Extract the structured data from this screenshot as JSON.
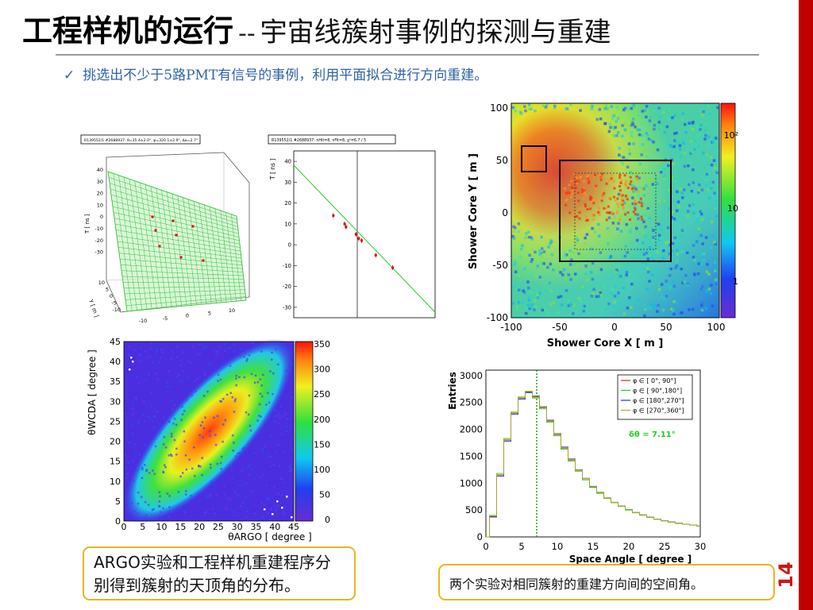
{
  "slide": {
    "title_bold": "工程样机的运行",
    "title_sep": "--",
    "title_rest": "宇宙线簇射事例的探测与重建",
    "page_number": "14",
    "bullet_check": "✓",
    "bullet": "挑选出不少于5路PMT有信号的事例，利用平面拟合进行方向重建。",
    "caption_left": "ARGO实验和工程样机重建程序分别得到簇射的天顶角的分布。",
    "caption_right": "两个实验对相同簇射的重建方向间的空间角。",
    "colors": {
      "accent_red": "#c00000",
      "bullet_blue": "#2d63a8",
      "caption_border": "#e6b71e"
    }
  },
  "chart_data": [
    {
      "type": "scatter",
      "name": "plane-fit-3d",
      "title": "R139552/1 #2688937: θ=35.4±2.0°, φ=320.1±2.9°, Δα=2.7°",
      "ylabel": "T [ ns ]",
      "xlabel": "Y [ m ]",
      "zlabel": "",
      "z_ticks": [
        "40",
        "30",
        "20",
        "10",
        "0",
        "-10",
        "-20",
        "-30"
      ],
      "y_ticks": [
        "10",
        "5",
        "0",
        "-5",
        "-10"
      ],
      "x_ticks": [
        "-10",
        "-5",
        "0",
        "5",
        "10"
      ]
    },
    {
      "type": "scatter",
      "name": "time-residual-fit",
      "title": "R139552/1 #2688937: nHit=8, nFit=8, χ²=6.7 / 5",
      "ylabel": "T [ ns ]",
      "ylim": [
        -35,
        45
      ],
      "y_ticks": [
        "40",
        "30",
        "20",
        "10",
        "0",
        "-10",
        "-20",
        "-30"
      ],
      "points": [
        {
          "x": 0.28,
          "y": 14
        },
        {
          "x": 0.36,
          "y": 10
        },
        {
          "x": 0.37,
          "y": 8.5
        },
        {
          "x": 0.44,
          "y": 5
        },
        {
          "x": 0.46,
          "y": 3
        },
        {
          "x": 0.48,
          "y": 2
        },
        {
          "x": 0.58,
          "y": -5
        },
        {
          "x": 0.7,
          "y": -11
        }
      ]
    },
    {
      "type": "heatmap",
      "name": "shower-core-map",
      "xlabel": "Shower Core X [ m ]",
      "ylabel": "Shower Core Y [ m ]",
      "xlim": [
        -100,
        100
      ],
      "ylim": [
        -100,
        100
      ],
      "x_ticks": [
        "-100",
        "-50",
        "0",
        "50",
        "100"
      ],
      "y_ticks": [
        "100",
        "50",
        "0",
        "-50",
        "-100"
      ],
      "color_scale": "log",
      "colorbar_ticks": [
        "10²",
        "10",
        "1"
      ]
    },
    {
      "type": "heatmap",
      "name": "zenith-correlation",
      "xlabel": "θARGO [ degree ]",
      "ylabel": "θWCDA [ degree ]",
      "xlim": [
        0,
        45
      ],
      "ylim": [
        0,
        45
      ],
      "x_ticks": [
        "0",
        "5",
        "10",
        "15",
        "20",
        "25",
        "30",
        "35",
        "40",
        "45"
      ],
      "y_ticks": [
        "45",
        "40",
        "35",
        "30",
        "25",
        "20",
        "15",
        "10",
        "5",
        "0"
      ],
      "colorbar_ticks": [
        "350",
        "300",
        "250",
        "200",
        "150",
        "100",
        "50",
        "0"
      ]
    },
    {
      "type": "line",
      "name": "space-angle",
      "xlabel": "Space Angle [ degree ]",
      "ylabel": "Entries",
      "xlim": [
        0,
        30
      ],
      "ylim": [
        0,
        3100
      ],
      "x_ticks": [
        "0",
        "5",
        "10",
        "15",
        "20",
        "25",
        "30"
      ],
      "y_ticks": [
        "3000",
        "2500",
        "2000",
        "1500",
        "1000",
        "500",
        "0"
      ],
      "annotation": "δθ = 7.11°",
      "marker_x": 7.11,
      "x": [
        0,
        1,
        2,
        3,
        4,
        5,
        6,
        7,
        8,
        9,
        10,
        11,
        12,
        13,
        14,
        15,
        16,
        17,
        18,
        19,
        20,
        21,
        22,
        23,
        24,
        25,
        26,
        27,
        28,
        29,
        30
      ],
      "series": [
        {
          "name": "φ ∈ [   0°,  90°]",
          "color": "#e02020",
          "values": [
            0,
            380,
            1150,
            1800,
            2300,
            2580,
            2700,
            2600,
            2400,
            2150,
            1900,
            1650,
            1430,
            1240,
            1080,
            930,
            820,
            720,
            640,
            570,
            505,
            450,
            405,
            365,
            330,
            300,
            275,
            255,
            235,
            220,
            205
          ]
        },
        {
          "name": "φ ∈ [  90°,180°]",
          "color": "#22cc22",
          "values": [
            0,
            400,
            1180,
            1830,
            2320,
            2600,
            2690,
            2580,
            2380,
            2130,
            1880,
            1630,
            1410,
            1220,
            1060,
            920,
            810,
            715,
            635,
            565,
            500,
            448,
            402,
            362,
            328,
            298,
            272,
            252,
            233,
            218,
            203
          ]
        },
        {
          "name": "φ ∈ [180°,270°]",
          "color": "#2030d0",
          "values": [
            0,
            370,
            1130,
            1780,
            2280,
            2560,
            2680,
            2620,
            2420,
            2170,
            1920,
            1670,
            1450,
            1250,
            1090,
            940,
            830,
            725,
            645,
            575,
            510,
            455,
            410,
            368,
            333,
            303,
            278,
            257,
            237,
            222,
            207
          ]
        },
        {
          "name": "φ ∈ [270°,360°]",
          "color": "#b0b020",
          "values": [
            0,
            390,
            1160,
            1810,
            2310,
            2590,
            2710,
            2610,
            2410,
            2160,
            1910,
            1660,
            1440,
            1245,
            1085,
            935,
            825,
            722,
            642,
            572,
            507,
            452,
            407,
            366,
            331,
            301,
            276,
            256,
            236,
            221,
            206
          ]
        }
      ]
    }
  ]
}
